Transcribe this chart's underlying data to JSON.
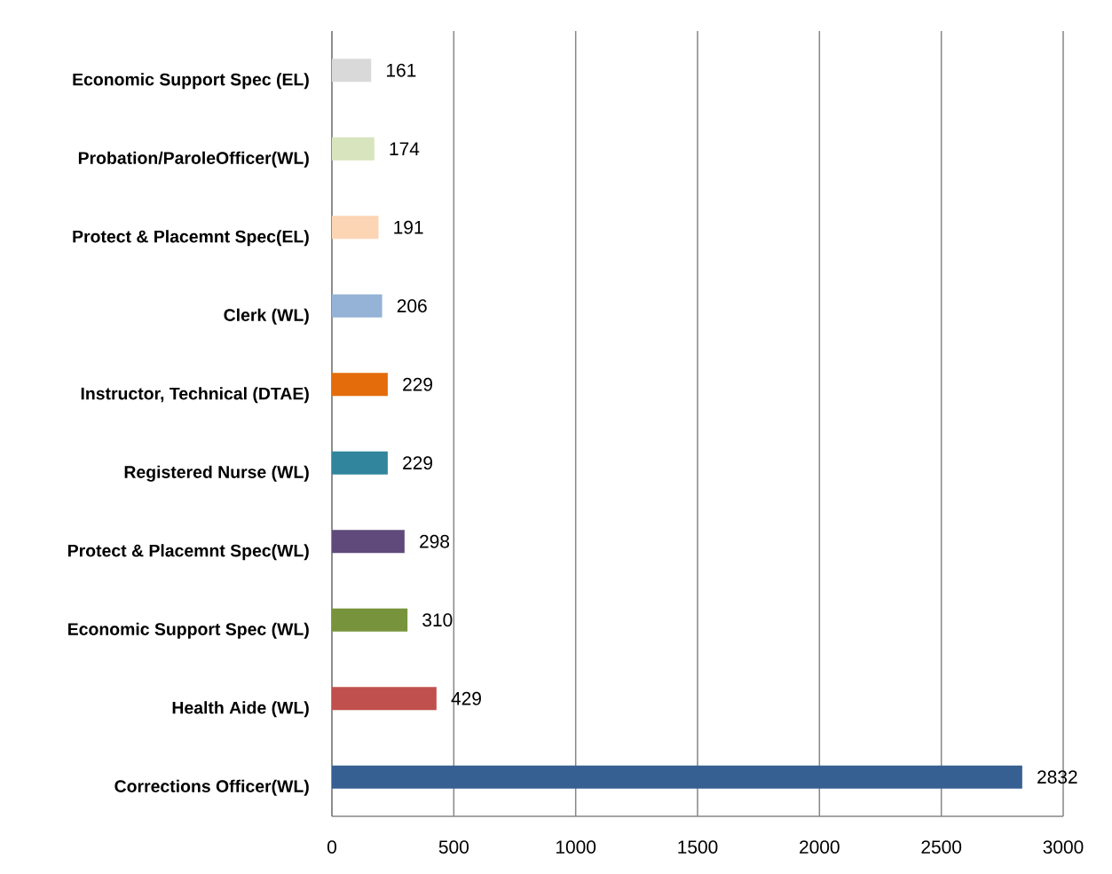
{
  "chart_data": {
    "type": "bar",
    "orientation": "horizontal",
    "categories": [
      "Economic Support Spec (EL)",
      "Probation/ParoleOfficer(WL)",
      "Protect & Placemnt Spec(EL)",
      "Clerk (WL)",
      "Instructor, Technical  (DTAE)",
      "Registered Nurse (WL)",
      "Protect & Placemnt Spec(WL)",
      "Economic Support Spec (WL)",
      "Health Aide (WL)",
      "Corrections Officer(WL)"
    ],
    "values": [
      161,
      174,
      191,
      206,
      229,
      229,
      298,
      310,
      429,
      2832
    ],
    "colors": [
      "#d9d9d9",
      "#d7e4bd",
      "#fcd5b5",
      "#95b3d7",
      "#e46c0a",
      "#31859c",
      "#604a7b",
      "#77933c",
      "#c0504d",
      "#376092"
    ],
    "xlim": [
      0,
      3000
    ],
    "xticks": [
      0,
      500,
      1000,
      1500,
      2000,
      2500,
      3000
    ],
    "grid": "x",
    "data_labels": true
  }
}
